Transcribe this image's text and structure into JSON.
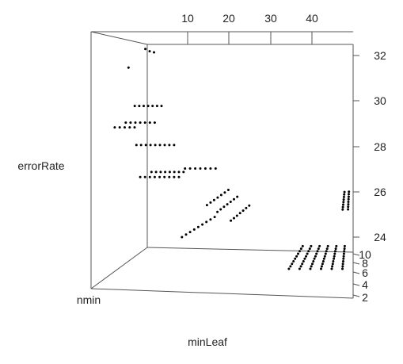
{
  "chart_data": {
    "type": "scatter",
    "subtype": "3d-scatter",
    "xlabel": "minLeaf",
    "ylabel": "nmin",
    "zlabel": "errorRate",
    "x_ticks": [
      "10",
      "20",
      "30",
      "40"
    ],
    "y_ticks": [
      "2",
      "4",
      "6",
      "8",
      "10"
    ],
    "z_ticks": [
      "24",
      "26",
      "28",
      "30",
      "32"
    ],
    "xlim": [
      1,
      50
    ],
    "ylim": [
      1,
      10
    ],
    "zlim": [
      23.5,
      32.5
    ],
    "grid": false,
    "legend": "none",
    "point_color": "#000000",
    "series": [
      {
        "points": [
          [
            2,
            2,
            32.4
          ],
          [
            3,
            2,
            32.3
          ],
          [
            4,
            2,
            32.25
          ],
          [
            1,
            4,
            31.8
          ],
          [
            1,
            3,
            30.0
          ],
          [
            2,
            3,
            30.0
          ],
          [
            3,
            3,
            30.0
          ],
          [
            4,
            3,
            30.0
          ],
          [
            5,
            3,
            30.0
          ],
          [
            6,
            3,
            30.0
          ],
          [
            7,
            3,
            30.0
          ],
          [
            3,
            6,
            29.6
          ],
          [
            4,
            6,
            29.6
          ],
          [
            5,
            6,
            29.6
          ],
          [
            6,
            6,
            29.6
          ],
          [
            7,
            6,
            29.6
          ],
          [
            8,
            6,
            29.6
          ],
          [
            9,
            6,
            29.6
          ],
          [
            2,
            7,
            29.5
          ],
          [
            3,
            7,
            29.5
          ],
          [
            4,
            7,
            29.5
          ],
          [
            5,
            7,
            29.5
          ],
          [
            6,
            7,
            29.5
          ],
          [
            4,
            5,
            28.5
          ],
          [
            5,
            5,
            28.5
          ],
          [
            6,
            5,
            28.5
          ],
          [
            7,
            5,
            28.5
          ],
          [
            8,
            5,
            28.5
          ],
          [
            9,
            5,
            28.5
          ],
          [
            10,
            5,
            28.5
          ],
          [
            11,
            5,
            28.5
          ],
          [
            12,
            5,
            28.5
          ],
          [
            6,
            6,
            27.2
          ],
          [
            7,
            6,
            27.2
          ],
          [
            8,
            6,
            27.2
          ],
          [
            9,
            6,
            27.2
          ],
          [
            10,
            6,
            27.2
          ],
          [
            11,
            6,
            27.2
          ],
          [
            12,
            6,
            27.2
          ],
          [
            13,
            6,
            27.2
          ],
          [
            14,
            6,
            27.2
          ],
          [
            6,
            4,
            27.2
          ],
          [
            7,
            4,
            27.2
          ],
          [
            8,
            4,
            27.2
          ],
          [
            9,
            4,
            27.2
          ],
          [
            10,
            4,
            27.2
          ],
          [
            11,
            4,
            27.2
          ],
          [
            12,
            4,
            27.2
          ],
          [
            13,
            4,
            27.2
          ],
          [
            17,
            8,
            27.8
          ],
          [
            18,
            8,
            27.8
          ],
          [
            19,
            8,
            27.8
          ],
          [
            20,
            8,
            27.8
          ],
          [
            21,
            8,
            27.8
          ],
          [
            22,
            8,
            27.8
          ],
          [
            23,
            8,
            27.8
          ],
          [
            22,
            3,
            26.3
          ],
          [
            22,
            4,
            26.3
          ],
          [
            22,
            5,
            26.3
          ],
          [
            22,
            6,
            26.3
          ],
          [
            22,
            7,
            26.3
          ],
          [
            22,
            8,
            26.3
          ],
          [
            22,
            9,
            26.3
          ],
          [
            24,
            3,
            26.0
          ],
          [
            24,
            4,
            26.0
          ],
          [
            24,
            5,
            26.0
          ],
          [
            24,
            6,
            26.0
          ],
          [
            24,
            7,
            26.0
          ],
          [
            24,
            8,
            26.0
          ],
          [
            24,
            9,
            26.0
          ],
          [
            26,
            2,
            25.5
          ],
          [
            26,
            3,
            25.5
          ],
          [
            26,
            4,
            25.5
          ],
          [
            26,
            5,
            25.5
          ],
          [
            26,
            6,
            25.5
          ],
          [
            26,
            7,
            25.5
          ],
          [
            26,
            8,
            25.5
          ],
          [
            18,
            2,
            25.0
          ],
          [
            18,
            3,
            25.0
          ],
          [
            18,
            4,
            25.0
          ],
          [
            18,
            5,
            25.0
          ],
          [
            18,
            6,
            25.0
          ],
          [
            18,
            7,
            25.0
          ],
          [
            18,
            8,
            25.0
          ],
          [
            18,
            9,
            25.0
          ],
          [
            18,
            10,
            25.0
          ],
          [
            48,
            2,
            26.1
          ],
          [
            48,
            3,
            26.1
          ],
          [
            48,
            4,
            26.1
          ],
          [
            48,
            5,
            26.1
          ],
          [
            48,
            6,
            26.1
          ],
          [
            48,
            7,
            26.1
          ],
          [
            48,
            8,
            26.1
          ],
          [
            48,
            9,
            26.1
          ],
          [
            49,
            1,
            26.0
          ],
          [
            49,
            2,
            26.0
          ],
          [
            49,
            3,
            26.0
          ],
          [
            49,
            4,
            26.0
          ],
          [
            49,
            5,
            26.0
          ],
          [
            49,
            6,
            26.0
          ],
          [
            49,
            7,
            26.0
          ],
          [
            49,
            8,
            26.0
          ],
          [
            38,
            1,
            23.6
          ],
          [
            38,
            2,
            23.6
          ],
          [
            38,
            3,
            23.6
          ],
          [
            38,
            4,
            23.6
          ],
          [
            38,
            5,
            23.6
          ],
          [
            38,
            6,
            23.6
          ],
          [
            38,
            7,
            23.6
          ],
          [
            38,
            8,
            23.6
          ],
          [
            38,
            9,
            23.6
          ],
          [
            38,
            10,
            23.6
          ],
          [
            40,
            1,
            23.6
          ],
          [
            40,
            2,
            23.6
          ],
          [
            40,
            3,
            23.6
          ],
          [
            40,
            4,
            23.6
          ],
          [
            40,
            5,
            23.6
          ],
          [
            40,
            6,
            23.6
          ],
          [
            40,
            7,
            23.6
          ],
          [
            40,
            8,
            23.6
          ],
          [
            40,
            9,
            23.6
          ],
          [
            40,
            10,
            23.6
          ],
          [
            42,
            1,
            23.6
          ],
          [
            42,
            2,
            23.6
          ],
          [
            42,
            3,
            23.6
          ],
          [
            42,
            4,
            23.6
          ],
          [
            42,
            5,
            23.6
          ],
          [
            42,
            6,
            23.6
          ],
          [
            42,
            7,
            23.6
          ],
          [
            42,
            8,
            23.6
          ],
          [
            42,
            9,
            23.6
          ],
          [
            42,
            10,
            23.6
          ],
          [
            44,
            1,
            23.6
          ],
          [
            44,
            2,
            23.6
          ],
          [
            44,
            3,
            23.6
          ],
          [
            44,
            4,
            23.6
          ],
          [
            44,
            5,
            23.6
          ],
          [
            44,
            6,
            23.6
          ],
          [
            44,
            7,
            23.6
          ],
          [
            44,
            8,
            23.6
          ],
          [
            44,
            9,
            23.6
          ],
          [
            44,
            10,
            23.6
          ],
          [
            46,
            1,
            23.6
          ],
          [
            46,
            2,
            23.6
          ],
          [
            46,
            3,
            23.6
          ],
          [
            46,
            4,
            23.6
          ],
          [
            46,
            5,
            23.6
          ],
          [
            46,
            6,
            23.6
          ],
          [
            46,
            7,
            23.6
          ],
          [
            46,
            8,
            23.6
          ],
          [
            46,
            9,
            23.6
          ],
          [
            46,
            10,
            23.6
          ],
          [
            48,
            1,
            23.6
          ],
          [
            48,
            2,
            23.6
          ],
          [
            48,
            3,
            23.6
          ],
          [
            48,
            4,
            23.6
          ],
          [
            48,
            5,
            23.6
          ],
          [
            48,
            6,
            23.6
          ],
          [
            48,
            7,
            23.6
          ],
          [
            48,
            8,
            23.6
          ],
          [
            48,
            9,
            23.6
          ],
          [
            48,
            10,
            23.6
          ]
        ]
      }
    ]
  }
}
